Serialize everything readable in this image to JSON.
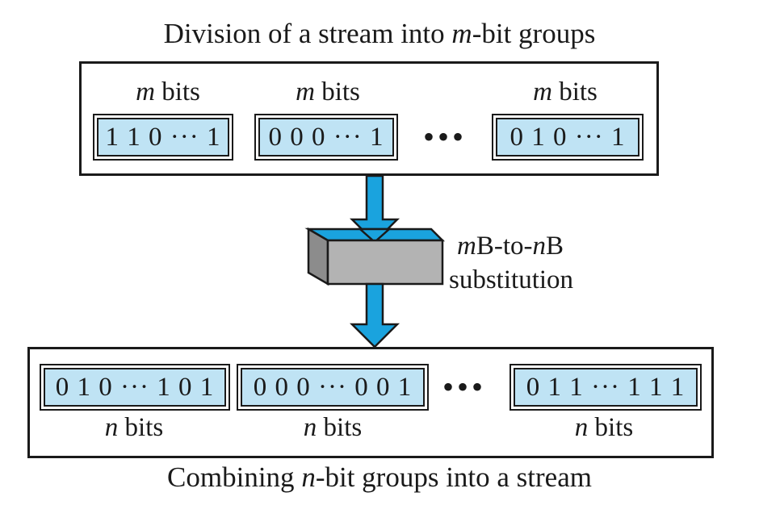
{
  "top": {
    "caption_pre": "Division of a stream into ",
    "caption_var": "m",
    "caption_post": "-bit groups",
    "groups": [
      {
        "var": "m",
        "unit": " bits",
        "bits": "1 1 0 ··· 1"
      },
      {
        "var": "m",
        "unit": " bits",
        "bits": "0 0 0 ··· 1"
      },
      {
        "var": "m",
        "unit": " bits",
        "bits": "0 1 0 ··· 1"
      }
    ],
    "ellipsis": "•••"
  },
  "block": {
    "line1_var1": "m",
    "line1_mid": "B-to-",
    "line1_var2": "n",
    "line1_end": "B",
    "line2": "substitution"
  },
  "bottom": {
    "caption_pre": "Combining ",
    "caption_var": "n",
    "caption_post": "-bit groups into a stream",
    "groups": [
      {
        "var": "n",
        "unit": " bits",
        "bits": "0 1 0 ··· 1 0 1"
      },
      {
        "var": "n",
        "unit": " bits",
        "bits": "0 0 0 ··· 0 0 1"
      },
      {
        "var": "n",
        "unit": " bits",
        "bits": "0 1 1 ··· 1 1 1"
      }
    ],
    "ellipsis": "•••"
  },
  "colors": {
    "box_fill": "#bfe3f4",
    "arrow_fill": "#1aa3de",
    "block_top": "#1aa3de",
    "block_front": "#b3b3b3"
  }
}
